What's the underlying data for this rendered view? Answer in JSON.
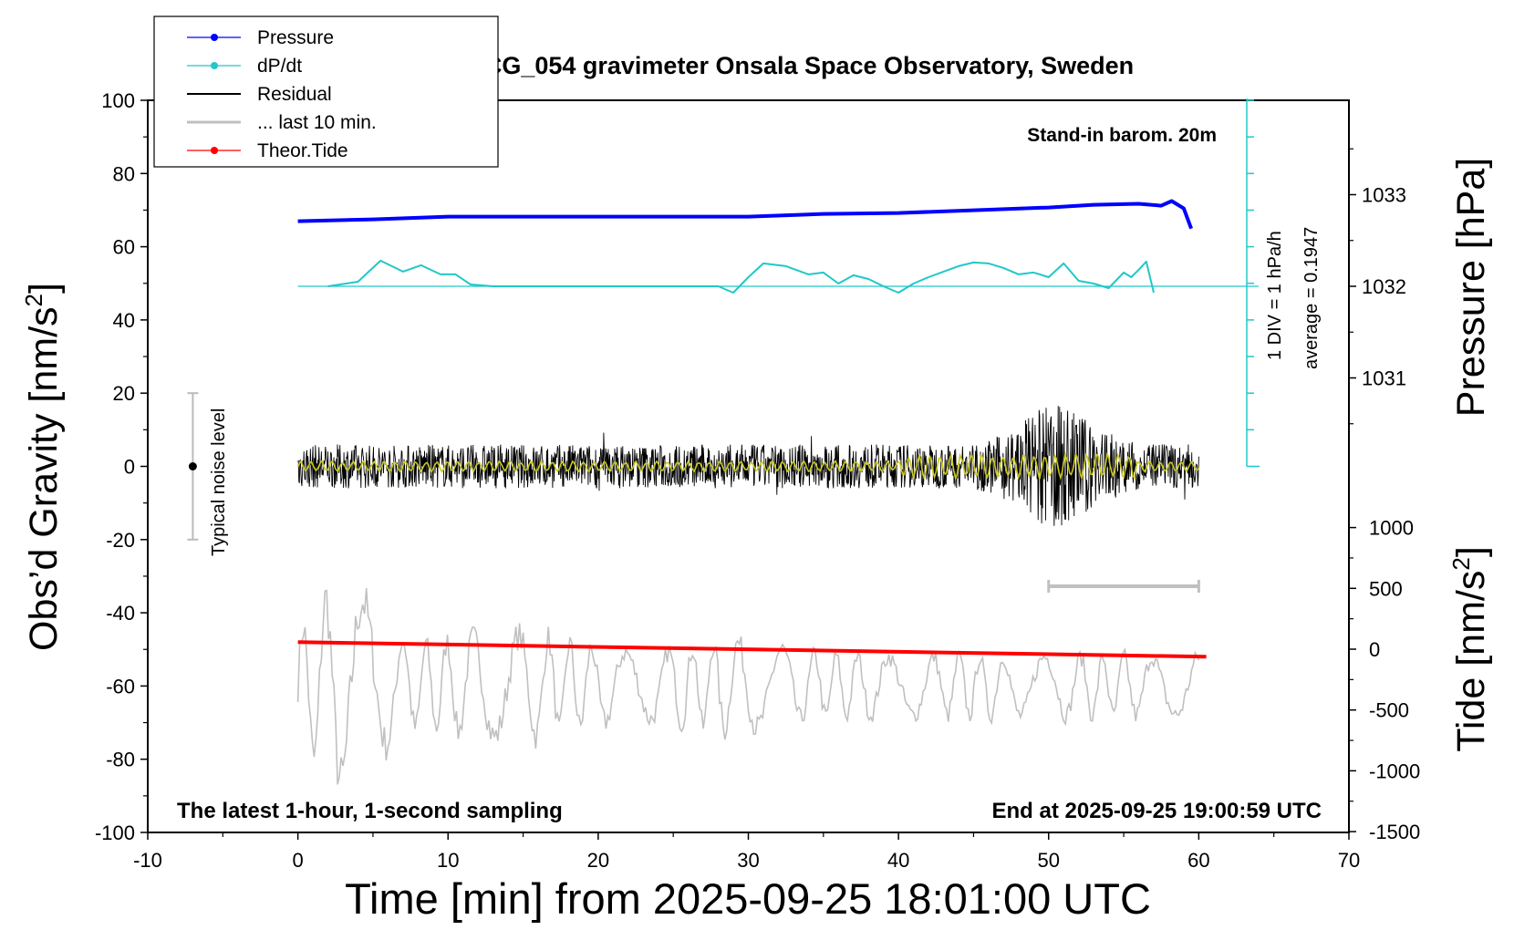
{
  "chart_data": {
    "type": "line",
    "title": "SCG_054 gravimeter Onsala Space Observatory, Sweden",
    "xlabel": "Time [min] from 2025-09-25 18:01:00 UTC",
    "xlim": [
      -10,
      70
    ],
    "xticks": [
      "-10",
      "0",
      "10",
      "20",
      "30",
      "40",
      "50",
      "60",
      "70"
    ],
    "y_left": {
      "label": "Obs'd Gravity [nm/s²]",
      "label_main": "Obs’d Gravity [nm/s",
      "label_sup": "2",
      "label_end": "]",
      "lim": [
        -100,
        100
      ],
      "ticks": [
        "100",
        "80",
        "60",
        "40",
        "20",
        "0",
        "-20",
        "-40",
        "-60",
        "-80",
        "-100"
      ]
    },
    "y_right_pressure": {
      "label": "Pressure [hPa]",
      "ticks": [
        "1033",
        "1032",
        "1031"
      ],
      "tick_values": [
        1033,
        1032,
        1031
      ]
    },
    "y_right_tide": {
      "label": "Tide [nm/s²]",
      "label_main": "Tide [nm/s",
      "label_sup": "2",
      "label_end": "]",
      "ticks": [
        "1000",
        "500",
        "0",
        "-500",
        "-1000",
        "-1500"
      ],
      "tick_values": [
        1000,
        500,
        0,
        -500,
        -1000,
        -1500
      ]
    },
    "legend": {
      "position": "top-left",
      "entries": [
        {
          "label": "Pressure",
          "color": "#0000ff",
          "marker": true
        },
        {
          "label": "dP/dt",
          "color": "#20c8c8",
          "marker": true
        },
        {
          "label": "Residual",
          "color": "#000000",
          "marker": false
        },
        {
          "label": "... last 10 min.",
          "color": "#c0c0c0",
          "marker": false
        },
        {
          "label": "Theor.Tide",
          "color": "#ff0000",
          "marker": true
        }
      ]
    },
    "annotations": {
      "barometer": "Stand-in barom. 20m",
      "dpdt_scale": "1 DIV = 1 hPa/h",
      "dpdt_average": "average = 0.1947",
      "noise": "Typical noise level",
      "bottom_left": "The latest 1-hour, 1-second sampling",
      "bottom_right": "End at 2025-09-25 19:00:59 UTC"
    },
    "noise_bar": {
      "x": -7,
      "range": [
        -20,
        20
      ]
    },
    "last10_bar": {
      "x_range": [
        50,
        60
      ]
    },
    "series": [
      {
        "name": "Pressure",
        "color": "#0000ff",
        "x": [
          0,
          5,
          10,
          15,
          20,
          25,
          30,
          35,
          40,
          45,
          50,
          53,
          56,
          57.5,
          58.2,
          59,
          59.5
        ],
        "y": [
          1032.71,
          1032.73,
          1032.76,
          1032.76,
          1032.76,
          1032.76,
          1032.76,
          1032.79,
          1032.8,
          1032.83,
          1032.86,
          1032.89,
          1032.9,
          1032.88,
          1032.93,
          1032.85,
          1032.63
        ]
      },
      {
        "name": "dP/dt",
        "color": "#20c8c8",
        "baseline": 1032.0,
        "x": [
          2,
          4,
          5.5,
          7,
          8.2,
          9.5,
          10.5,
          11.5,
          13,
          20,
          28,
          29,
          30,
          31,
          32.5,
          34,
          35,
          36,
          37,
          38,
          39,
          40,
          41,
          42,
          43,
          44,
          45,
          46,
          47,
          48,
          49,
          50,
          51,
          52,
          53,
          54,
          55,
          55.5,
          56,
          56.5,
          57
        ],
        "y": [
          1032.0,
          1032.05,
          1032.28,
          1032.16,
          1032.23,
          1032.13,
          1032.13,
          1032.02,
          1032.0,
          1032.0,
          1032.0,
          1031.93,
          1032.1,
          1032.25,
          1032.22,
          1032.13,
          1032.15,
          1032.03,
          1032.12,
          1032.08,
          1032.0,
          1031.93,
          1032.03,
          1032.1,
          1032.16,
          1032.22,
          1032.26,
          1032.25,
          1032.2,
          1032.13,
          1032.15,
          1032.1,
          1032.25,
          1032.06,
          1032.03,
          1031.98,
          1032.15,
          1032.1,
          1032.18,
          1032.27,
          1031.93
        ]
      },
      {
        "name": "Residual",
        "color": "#000000",
        "x_range": [
          0,
          60
        ],
        "y_range_typical": [
          -10,
          10
        ],
        "y_range_max": [
          -29,
          29
        ]
      },
      {
        "name": "... last 10 min.",
        "color": "#c0c0c0",
        "offset_level": -60,
        "amplitude_range": [
          -93,
          -33
        ]
      },
      {
        "name": "Theor.Tide",
        "color": "#ff0000",
        "x": [
          0,
          60.5
        ],
        "y": [
          -48,
          -52
        ]
      }
    ]
  }
}
